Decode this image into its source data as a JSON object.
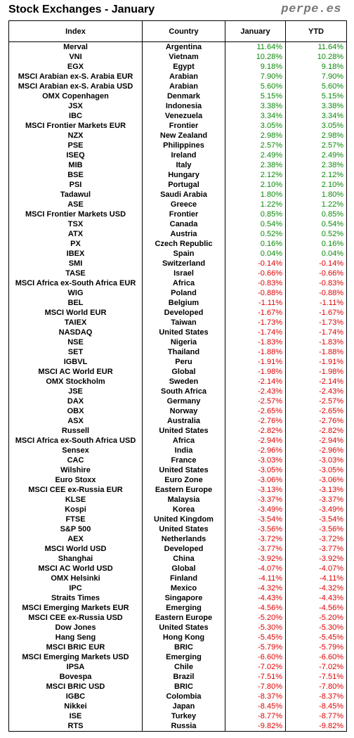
{
  "title": "Stock Exchanges - January",
  "brand": "perpe.es",
  "colors": {
    "positive": "#0a8a0a",
    "negative": "#e00000",
    "brand": "#777777"
  },
  "columns": [
    "Index",
    "Country",
    "January",
    "YTD"
  ],
  "rows": [
    [
      "Merval",
      "Argentina",
      "11.64%",
      "11.64%"
    ],
    [
      "VNI",
      "Vietnam",
      "10.28%",
      "10.28%"
    ],
    [
      "EGX",
      "Egypt",
      "9.18%",
      "9.18%"
    ],
    [
      "MSCI Arabian ex-S. Arabia EUR",
      "Arabian",
      "7.90%",
      "7.90%"
    ],
    [
      "MSCI Arabian ex-S. Arabia USD",
      "Arabian",
      "5.60%",
      "5.60%"
    ],
    [
      "OMX Copenhagen",
      "Denmark",
      "5.15%",
      "5.15%"
    ],
    [
      "JSX",
      "Indonesia",
      "3.38%",
      "3.38%"
    ],
    [
      "IBC",
      "Venezuela",
      "3.34%",
      "3.34%"
    ],
    [
      "MSCI Frontier Markets EUR",
      "Frontier",
      "3.05%",
      "3.05%"
    ],
    [
      "NZX",
      "New Zealand",
      "2.98%",
      "2.98%"
    ],
    [
      "PSE",
      "Philippines",
      "2.57%",
      "2.57%"
    ],
    [
      "ISEQ",
      "Ireland",
      "2.49%",
      "2.49%"
    ],
    [
      "MIB",
      "Italy",
      "2.38%",
      "2.38%"
    ],
    [
      "BSE",
      "Hungary",
      "2.12%",
      "2.12%"
    ],
    [
      "PSI",
      "Portugal",
      "2.10%",
      "2.10%"
    ],
    [
      "Tadawul",
      "Saudi Arabia",
      "1.80%",
      "1.80%"
    ],
    [
      "ASE",
      "Greece",
      "1.22%",
      "1.22%"
    ],
    [
      "MSCI Frontier Markets USD",
      "Frontier",
      "0.85%",
      "0.85%"
    ],
    [
      "TSX",
      "Canada",
      "0.54%",
      "0.54%"
    ],
    [
      "ATX",
      "Austria",
      "0.52%",
      "0.52%"
    ],
    [
      "PX",
      "Czech Republic",
      "0.16%",
      "0.16%"
    ],
    [
      "IBEX",
      "Spain",
      "0.04%",
      "0.04%"
    ],
    [
      "SMI",
      "Switzerland",
      "-0.14%",
      "-0.14%"
    ],
    [
      "TASE",
      "Israel",
      "-0.66%",
      "-0.66%"
    ],
    [
      "MSCI Africa ex-South Africa EUR",
      "Africa",
      "-0.83%",
      "-0.83%"
    ],
    [
      "WIG",
      "Poland",
      "-0.88%",
      "-0.88%"
    ],
    [
      "BEL",
      "Belgium",
      "-1.11%",
      "-1.11%"
    ],
    [
      "MSCI World EUR",
      "Developed",
      "-1.67%",
      "-1.67%"
    ],
    [
      "TAIEX",
      "Taiwan",
      "-1.73%",
      "-1.73%"
    ],
    [
      "NASDAQ",
      "United States",
      "-1.74%",
      "-1.74%"
    ],
    [
      "NSE",
      "Nigeria",
      "-1.83%",
      "-1.83%"
    ],
    [
      "SET",
      "Thailand",
      "-1.88%",
      "-1.88%"
    ],
    [
      "IGBVL",
      "Peru",
      "-1.91%",
      "-1.91%"
    ],
    [
      "MSCI AC World EUR",
      "Global",
      "-1.98%",
      "-1.98%"
    ],
    [
      "OMX Stockholm",
      "Sweden",
      "-2.14%",
      "-2.14%"
    ],
    [
      "JSE",
      "South Africa",
      "-2.43%",
      "-2.43%"
    ],
    [
      "DAX",
      "Germany",
      "-2.57%",
      "-2.57%"
    ],
    [
      "OBX",
      "Norway",
      "-2.65%",
      "-2.65%"
    ],
    [
      "ASX",
      "Australia",
      "-2.76%",
      "-2.76%"
    ],
    [
      "Russell",
      "United States",
      "-2.82%",
      "-2.82%"
    ],
    [
      "MSCI Africa ex-South Africa USD",
      "Africa",
      "-2.94%",
      "-2.94%"
    ],
    [
      "Sensex",
      "India",
      "-2.96%",
      "-2.96%"
    ],
    [
      "CAC",
      "France",
      "-3.03%",
      "-3.03%"
    ],
    [
      "Wilshire",
      "United States",
      "-3.05%",
      "-3.05%"
    ],
    [
      "Euro Stoxx",
      "Euro Zone",
      "-3.06%",
      "-3.06%"
    ],
    [
      "MSCI CEE ex-Russia EUR",
      "Eastern Europe",
      "-3.13%",
      "-3.13%"
    ],
    [
      "KLSE",
      "Malaysia",
      "-3.37%",
      "-3.37%"
    ],
    [
      "Kospi",
      "Korea",
      "-3.49%",
      "-3.49%"
    ],
    [
      "FTSE",
      "United Kingdom",
      "-3.54%",
      "-3.54%"
    ],
    [
      "S&P 500",
      "United States",
      "-3.56%",
      "-3.56%"
    ],
    [
      "AEX",
      "Netherlands",
      "-3.72%",
      "-3.72%"
    ],
    [
      "MSCI World USD",
      "Developed",
      "-3.77%",
      "-3.77%"
    ],
    [
      "Shanghai",
      "China",
      "-3.92%",
      "-3.92%"
    ],
    [
      "MSCI AC World USD",
      "Global",
      "-4.07%",
      "-4.07%"
    ],
    [
      "OMX Helsinki",
      "Finland",
      "-4.11%",
      "-4.11%"
    ],
    [
      "IPC",
      "Mexico",
      "-4.32%",
      "-4.32%"
    ],
    [
      "Straits Times",
      "Singapore",
      "-4.43%",
      "-4.43%"
    ],
    [
      "MSCI Emerging Markets EUR",
      "Emerging",
      "-4.56%",
      "-4.56%"
    ],
    [
      "MSCI CEE ex-Russia USD",
      "Eastern Europe",
      "-5.20%",
      "-5.20%"
    ],
    [
      "Dow Jones",
      "United States",
      "-5.30%",
      "-5.30%"
    ],
    [
      "Hang Seng",
      "Hong Kong",
      "-5.45%",
      "-5.45%"
    ],
    [
      "MSCI BRIC EUR",
      "BRIC",
      "-5.79%",
      "-5.79%"
    ],
    [
      "MSCI Emerging Markets USD",
      "Emerging",
      "-6.60%",
      "-6.60%"
    ],
    [
      "IPSA",
      "Chile",
      "-7.02%",
      "-7.02%"
    ],
    [
      "Bovespa",
      "Brazil",
      "-7.51%",
      "-7.51%"
    ],
    [
      "MSCI BRIC USD",
      "BRIC",
      "-7.80%",
      "-7.80%"
    ],
    [
      "IGBC",
      "Colombia",
      "-8.37%",
      "-8.37%"
    ],
    [
      "Nikkei",
      "Japan",
      "-8.45%",
      "-8.45%"
    ],
    [
      "ISE",
      "Turkey",
      "-8.77%",
      "-8.77%"
    ],
    [
      "RTS",
      "Russia",
      "-9.82%",
      "-9.82%"
    ]
  ]
}
